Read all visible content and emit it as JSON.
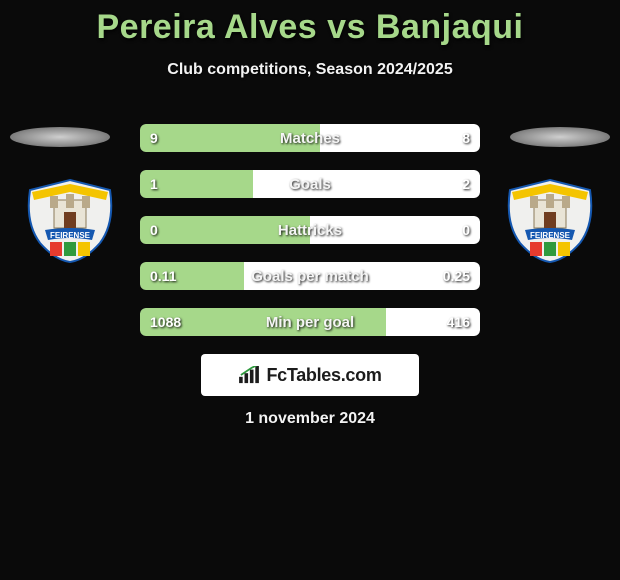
{
  "title_color": "#a6d88a",
  "header": {
    "title": "Pereira Alves vs Banjaqui",
    "subtitle": "Club competitions, Season 2024/2025"
  },
  "colors": {
    "background": "#0a0a0a",
    "row_track": "#3a3a3a",
    "bar_left": "#a6d88a",
    "bar_right": "#ffffff",
    "text": "#ffffff"
  },
  "row_width": 340,
  "rows": [
    {
      "label": "Matches",
      "left_val": "9",
      "right_val": "8",
      "left_pct": 52.9,
      "right_pct": 47.1
    },
    {
      "label": "Goals",
      "left_val": "1",
      "right_val": "2",
      "left_pct": 33.3,
      "right_pct": 66.7
    },
    {
      "label": "Hattricks",
      "left_val": "0",
      "right_val": "0",
      "left_pct": 50.0,
      "right_pct": 50.0
    },
    {
      "label": "Goals per match",
      "left_val": "0.11",
      "right_val": "0.25",
      "left_pct": 30.6,
      "right_pct": 69.4
    },
    {
      "label": "Min per goal",
      "left_val": "1088",
      "right_val": "416",
      "left_pct": 72.3,
      "right_pct": 27.7
    }
  ],
  "brand": {
    "text": "FcTables.com"
  },
  "date": "1 november 2024",
  "crest": {
    "banner_text": "FEIRENSE",
    "banner_color": "#1558b0",
    "outer_color": "#f0f0ee",
    "stripe_colors": [
      "#e63b2e",
      "#2f9a3e",
      "#f4c400"
    ],
    "castle_color": "#b9a98a"
  }
}
